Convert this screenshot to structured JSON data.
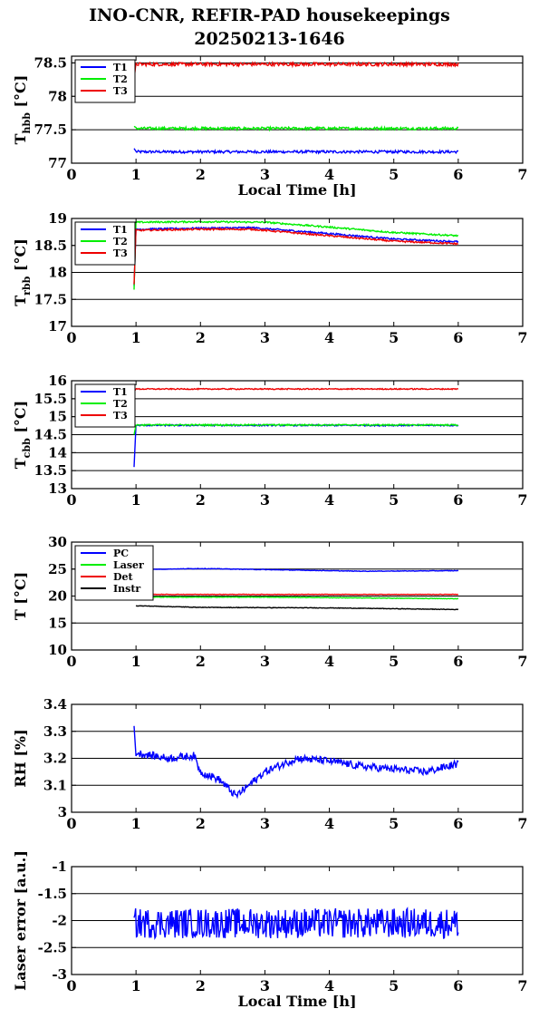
{
  "title": {
    "line1": "INO-CNR, REFIR-PAD housekeepings",
    "line2": "20250213-1646"
  },
  "colors": {
    "blue": "#0000ff",
    "green": "#00ee00",
    "red": "#ee0000",
    "black": "#000000"
  },
  "chart_data": [
    {
      "type": "line",
      "ylabel_main": "T",
      "ylabel_sub": "hbb",
      "ylabel_unit": " [°C]",
      "xlabel": "Local Time [h]",
      "xlim": [
        0,
        7
      ],
      "ylim": [
        77,
        78.6
      ],
      "xticks": [
        0,
        1,
        2,
        3,
        4,
        5,
        6,
        7
      ],
      "yticks": [
        77,
        77.5,
        78,
        78.5
      ],
      "ytick_labels": [
        "77",
        "77.5",
        "78",
        "78.5"
      ],
      "grid": true,
      "legend": "top-left",
      "series": [
        {
          "name": "T1",
          "color": "blue",
          "start": [
            0.97,
            77.22
          ],
          "mean": 77.17,
          "noise": 0.02,
          "x_end": 6.0,
          "key": []
        },
        {
          "name": "T2",
          "color": "green",
          "start": [
            0.97,
            77.55
          ],
          "mean": 77.52,
          "noise": 0.02,
          "x_end": 6.0,
          "key": []
        },
        {
          "name": "T3",
          "color": "red",
          "start": [
            0.97,
            78.25
          ],
          "mean": 78.47,
          "noise": 0.025,
          "x_end": 6.0,
          "key": [
            [
              1.0,
              78.48
            ],
            [
              6.0,
              78.48
            ]
          ]
        }
      ]
    },
    {
      "type": "line",
      "ylabel_main": "T",
      "ylabel_sub": "rbb",
      "ylabel_unit": " [°C]",
      "xlabel": "",
      "xlim": [
        0,
        7
      ],
      "ylim": [
        17,
        19
      ],
      "xticks": [
        0,
        1,
        2,
        3,
        4,
        5,
        6,
        7
      ],
      "yticks": [
        17,
        17.5,
        18,
        18.5,
        19
      ],
      "ytick_labels": [
        "17",
        "17.5",
        "18",
        "18.5",
        "19"
      ],
      "grid": true,
      "legend": "top-left",
      "series": [
        {
          "name": "T1",
          "color": "blue",
          "start": [
            0.97,
            17.75
          ],
          "noise": 0.015,
          "x_end": 6.0,
          "key": [
            [
              1.0,
              18.8
            ],
            [
              2.0,
              18.82
            ],
            [
              2.8,
              18.83
            ],
            [
              4.0,
              18.72
            ],
            [
              5.0,
              18.62
            ],
            [
              6.0,
              18.57
            ]
          ]
        },
        {
          "name": "T2",
          "color": "green",
          "start": [
            0.97,
            17.68
          ],
          "noise": 0.015,
          "x_end": 6.0,
          "key": [
            [
              1.0,
              18.93
            ],
            [
              2.0,
              18.94
            ],
            [
              3.0,
              18.93
            ],
            [
              4.0,
              18.84
            ],
            [
              5.0,
              18.74
            ],
            [
              6.0,
              18.68
            ]
          ]
        },
        {
          "name": "T3",
          "color": "red",
          "start": [
            0.97,
            17.78
          ],
          "noise": 0.015,
          "x_end": 6.0,
          "key": [
            [
              1.0,
              18.78
            ],
            [
              2.0,
              18.8
            ],
            [
              2.8,
              18.8
            ],
            [
              4.0,
              18.68
            ],
            [
              5.0,
              18.58
            ],
            [
              6.0,
              18.53
            ]
          ]
        }
      ]
    },
    {
      "type": "line",
      "ylabel_main": "T",
      "ylabel_sub": "cbb",
      "ylabel_unit": " [°C]",
      "xlabel": "",
      "xlim": [
        0,
        7
      ],
      "ylim": [
        13,
        16
      ],
      "xticks": [
        0,
        1,
        2,
        3,
        4,
        5,
        6,
        7
      ],
      "yticks": [
        13,
        13.5,
        14,
        14.5,
        15,
        15.5,
        16
      ],
      "ytick_labels": [
        "13",
        "13.5",
        "14",
        "14.5",
        "15",
        "15.5",
        "16"
      ],
      "grid": true,
      "legend": "top-left",
      "series": [
        {
          "name": "T1",
          "color": "blue",
          "start": [
            0.97,
            13.6
          ],
          "mean": 14.76,
          "noise": 0.02,
          "x_end": 6.0,
          "key": []
        },
        {
          "name": "T2",
          "color": "green",
          "start": [
            0.97,
            14.5
          ],
          "mean": 14.77,
          "noise": 0.02,
          "x_end": 6.0,
          "key": []
        },
        {
          "name": "T3",
          "color": "red",
          "start": [
            0.97,
            15.7
          ],
          "mean": 15.77,
          "noise": 0.015,
          "x_end": 6.0,
          "key": []
        }
      ]
    },
    {
      "type": "line",
      "ylabel_main": "T [°C]",
      "ylabel_sub": "",
      "ylabel_unit": "",
      "xlabel": "",
      "xlim": [
        0,
        7
      ],
      "ylim": [
        10,
        30
      ],
      "xticks": [
        0,
        1,
        2,
        3,
        4,
        5,
        6,
        7
      ],
      "yticks": [
        10,
        15,
        20,
        25,
        30
      ],
      "ytick_labels": [
        "10",
        "15",
        "20",
        "25",
        "30"
      ],
      "grid": true,
      "legend": "top-left",
      "series": [
        {
          "name": "PC",
          "color": "blue",
          "noise": 0.05,
          "x_end": 6.0,
          "key": [
            [
              1.0,
              24.9
            ],
            [
              2.0,
              25.1
            ],
            [
              3.0,
              24.9
            ],
            [
              4.5,
              24.6
            ],
            [
              6.0,
              24.7
            ]
          ]
        },
        {
          "name": "Laser",
          "color": "green",
          "noise": 0.05,
          "x_end": 6.0,
          "key": [
            [
              1.0,
              19.8
            ],
            [
              3.0,
              19.8
            ],
            [
              6.0,
              19.5
            ]
          ]
        },
        {
          "name": "Det",
          "color": "red",
          "noise": 0.04,
          "x_end": 6.0,
          "key": [
            [
              1.0,
              20.3
            ],
            [
              6.0,
              20.3
            ]
          ]
        },
        {
          "name": "Instr",
          "color": "black",
          "noise": 0.05,
          "x_end": 6.0,
          "key": [
            [
              1.0,
              18.2
            ],
            [
              2.0,
              17.9
            ],
            [
              4.0,
              17.8
            ],
            [
              6.0,
              17.5
            ]
          ]
        }
      ]
    },
    {
      "type": "line",
      "ylabel_main": "RH [%]",
      "ylabel_sub": "",
      "ylabel_unit": "",
      "xlabel": "",
      "xlim": [
        0,
        7
      ],
      "ylim": [
        3,
        3.4
      ],
      "xticks": [
        0,
        1,
        2,
        3,
        4,
        5,
        6,
        7
      ],
      "yticks": [
        3,
        3.1,
        3.2,
        3.3,
        3.4
      ],
      "ytick_labels": [
        "3",
        "3.1",
        "3.2",
        "3.3",
        "3.4"
      ],
      "grid": true,
      "legend": "none",
      "series": [
        {
          "name": "",
          "color": "blue",
          "start": [
            0.97,
            3.32
          ],
          "noise": 0.014,
          "x_end": 6.0,
          "key": [
            [
              1.0,
              3.22
            ],
            [
              1.5,
              3.2
            ],
            [
              1.9,
              3.21
            ],
            [
              2.0,
              3.15
            ],
            [
              2.3,
              3.12
            ],
            [
              2.55,
              3.06
            ],
            [
              2.7,
              3.09
            ],
            [
              3.0,
              3.15
            ],
            [
              3.5,
              3.2
            ],
            [
              4.0,
              3.19
            ],
            [
              4.5,
              3.17
            ],
            [
              5.0,
              3.16
            ],
            [
              5.5,
              3.15
            ],
            [
              6.0,
              3.18
            ]
          ]
        }
      ]
    },
    {
      "type": "line",
      "ylabel_main": "Laser error [a.u.]",
      "ylabel_sub": "",
      "ylabel_unit": "",
      "xlabel": "Local Time [h]",
      "xlim": [
        0,
        7
      ],
      "ylim": [
        -3,
        -1
      ],
      "xticks": [
        0,
        1,
        2,
        3,
        4,
        5,
        6,
        7
      ],
      "yticks": [
        -3,
        -2.5,
        -2,
        -1.5,
        -1
      ],
      "ytick_labels": [
        "-3",
        "-2.5",
        "-2",
        "-1.5",
        "-1"
      ],
      "grid": true,
      "legend": "none",
      "series": [
        {
          "name": "",
          "color": "blue",
          "noise": 0.28,
          "x_end": 6.0,
          "key": [
            [
              0.97,
              -2.05
            ],
            [
              6.0,
              -2.05
            ]
          ]
        }
      ]
    }
  ]
}
